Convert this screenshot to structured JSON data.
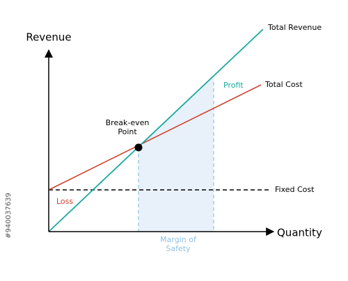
{
  "diagram": {
    "y_axis_label": "Revenue",
    "x_axis_label": "Quantity",
    "lines": {
      "total_revenue": "Total Revenue",
      "total_cost": "Total Cost",
      "fixed_cost": "Fixed Cost"
    },
    "regions": {
      "profit": "Profit",
      "loss": "Loss",
      "margin_of_safety": [
        "Margin of",
        "Safety"
      ]
    },
    "break_even": [
      "Break-even",
      "Point"
    ]
  },
  "watermark": "#940037639"
}
